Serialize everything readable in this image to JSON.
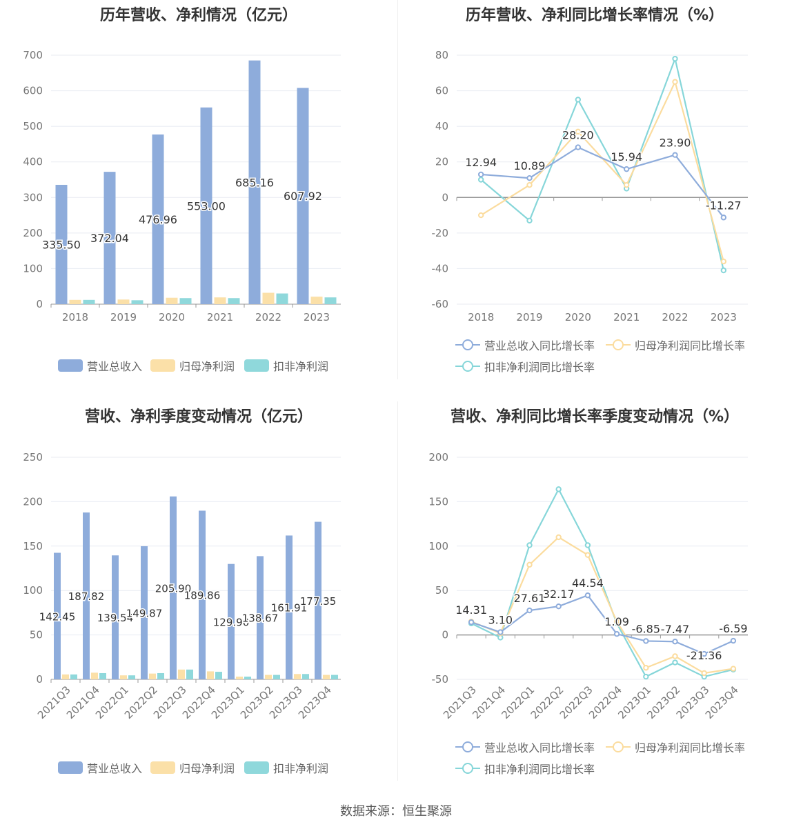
{
  "colors": {
    "revenue": "#8eacdb",
    "parent_profit": "#fbe0a8",
    "deducted_profit": "#8fd8db",
    "revenue_line": "#8eacdb",
    "parent_line": "#fbdc9e",
    "deducted_line": "#86d6d9"
  },
  "source_text": "数据来源：恒生聚源",
  "chart_data": [
    {
      "id": "annual-bar",
      "type": "bar",
      "title": "历年营收、净利情况（亿元）",
      "categories": [
        "2018",
        "2019",
        "2020",
        "2021",
        "2022",
        "2023"
      ],
      "ylim": [
        0,
        700
      ],
      "yticks": [
        0,
        100,
        200,
        300,
        400,
        500,
        600,
        700
      ],
      "grid": true,
      "legend": "bottom",
      "series": [
        {
          "name": "营业总收入",
          "values": [
            335.5,
            372.04,
            476.96,
            553.0,
            685.16,
            607.92
          ],
          "labels": [
            "335.50",
            "372.04",
            "476.96",
            "553.00",
            "685.16",
            "607.92"
          ]
        },
        {
          "name": "归母净利润",
          "values": [
            12,
            13,
            18,
            19,
            32,
            21
          ]
        },
        {
          "name": "扣非净利润",
          "values": [
            12,
            11,
            17,
            17,
            30,
            19
          ]
        }
      ]
    },
    {
      "id": "annual-line",
      "type": "line",
      "title": "历年营收、净利同比增长率情况（%）",
      "categories": [
        "2018",
        "2019",
        "2020",
        "2021",
        "2022",
        "2023"
      ],
      "ylim": [
        -60,
        80
      ],
      "yticks": [
        -60,
        -40,
        -20,
        0,
        20,
        40,
        60,
        80
      ],
      "grid": true,
      "legend": "bottom",
      "series": [
        {
          "name": "营业总收入同比增长率",
          "values": [
            12.94,
            10.89,
            28.2,
            15.94,
            23.9,
            -11.27
          ],
          "labels": [
            "12.94",
            "10.89",
            "28.20",
            "15.94",
            "23.90",
            "-11.27"
          ]
        },
        {
          "name": "归母净利润同比增长率",
          "values": [
            -10,
            7,
            37,
            7,
            65,
            -36
          ]
        },
        {
          "name": "扣非净利润同比增长率",
          "values": [
            10,
            -13,
            55,
            5,
            78,
            -41
          ]
        }
      ]
    },
    {
      "id": "quarter-bar",
      "type": "bar",
      "title": "营收、净利季度变动情况（亿元）",
      "categories": [
        "2021Q3",
        "2021Q4",
        "2022Q1",
        "2022Q2",
        "2022Q3",
        "2022Q4",
        "2023Q1",
        "2023Q2",
        "2023Q3",
        "2023Q4"
      ],
      "ylim": [
        0,
        250
      ],
      "yticks": [
        0,
        50,
        100,
        150,
        200,
        250
      ],
      "grid": true,
      "legend": "bottom",
      "series": [
        {
          "name": "营业总收入",
          "values": [
            142.45,
            187.82,
            139.54,
            149.87,
            205.9,
            189.86,
            129.9,
            138.67,
            161.91,
            177.35
          ],
          "labels": [
            "142.45",
            "187.82",
            "139.54",
            "149.87",
            "205.90",
            "189.86",
            "129.90",
            "138.67",
            "161.91",
            "177.35"
          ]
        },
        {
          "name": "归母净利润",
          "values": [
            5.5,
            7.5,
            4.5,
            6.5,
            11,
            9,
            3,
            5,
            6,
            5
          ]
        },
        {
          "name": "扣非净利润",
          "values": [
            5.5,
            7,
            4.5,
            7,
            11,
            8.5,
            3,
            5,
            6,
            5
          ]
        }
      ]
    },
    {
      "id": "quarter-line",
      "type": "line",
      "title": "营收、净利同比增长率季度变动情况（%）",
      "categories": [
        "2021Q3",
        "2021Q4",
        "2022Q1",
        "2022Q2",
        "2022Q3",
        "2022Q4",
        "2023Q1",
        "2023Q2",
        "2023Q3",
        "2023Q4"
      ],
      "ylim": [
        -50,
        200
      ],
      "yticks": [
        -50,
        0,
        50,
        100,
        150,
        200
      ],
      "grid": true,
      "legend": "bottom",
      "series": [
        {
          "name": "营业总收入同比增长率",
          "values": [
            14.31,
            3.1,
            27.61,
            32.17,
            44.54,
            1.09,
            -6.85,
            -7.47,
            -21.36,
            -6.59
          ],
          "labels": [
            "14.31",
            "3.10",
            "27.61",
            "32.17",
            "44.54",
            "1.09",
            "-6.85",
            "-7.47",
            "-21.36",
            "-6.59"
          ]
        },
        {
          "name": "归母净利润同比增长率",
          "values": [
            15,
            2,
            79,
            110,
            90,
            15,
            -37,
            -24,
            -43,
            -38
          ]
        },
        {
          "name": "扣非净利润同比增长率",
          "values": [
            13,
            -3,
            101,
            164,
            101,
            13,
            -47,
            -31,
            -47,
            -39
          ]
        }
      ]
    }
  ]
}
